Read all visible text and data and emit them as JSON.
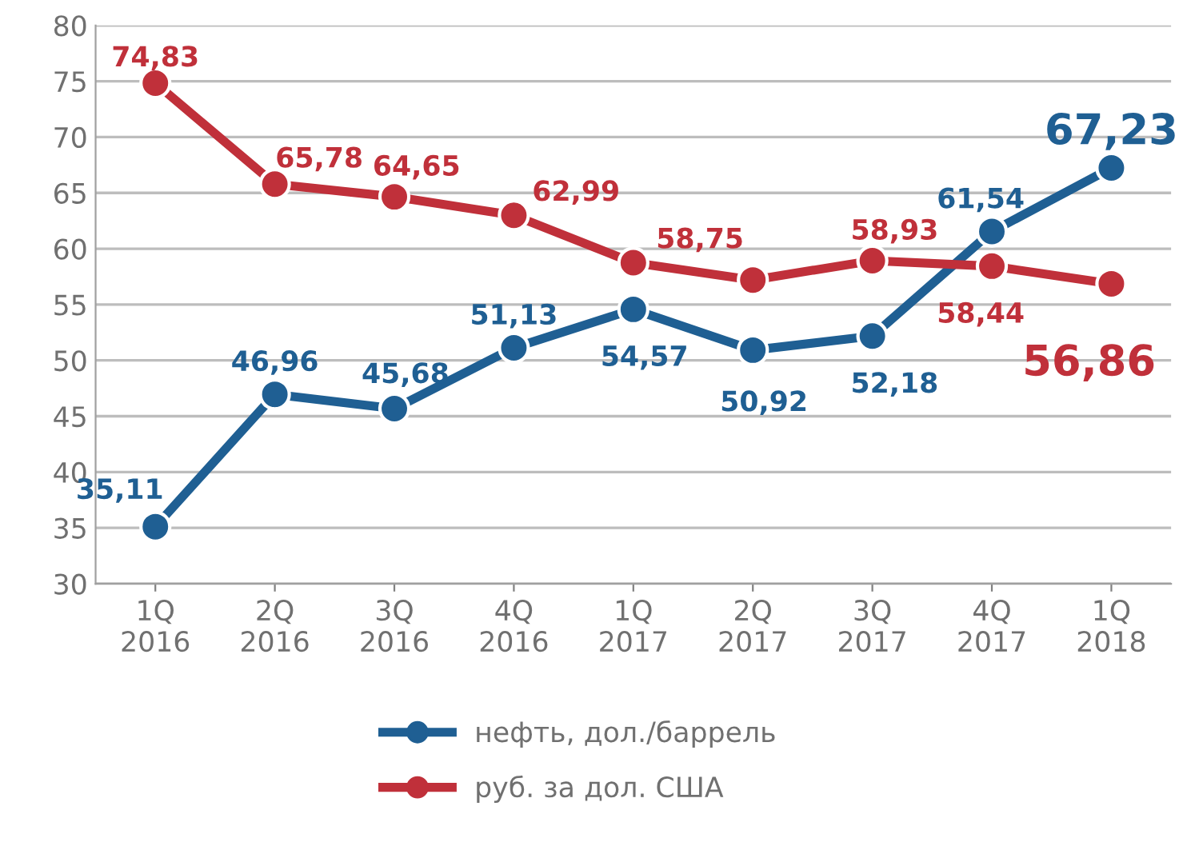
{
  "chart_data": {
    "type": "line",
    "categories": [
      "1Q\n2016",
      "2Q\n2016",
      "3Q\n2016",
      "4Q\n2016",
      "1Q\n2017",
      "2Q\n2017",
      "3Q\n2017",
      "4Q\n2017",
      "1Q\n2018"
    ],
    "series": [
      {
        "name": "нефть, дол./баррель",
        "color": "#1f5f93",
        "values": [
          35.11,
          46.96,
          45.68,
          51.13,
          54.57,
          50.92,
          52.18,
          61.54,
          67.23
        ],
        "value_labels": [
          "35,11",
          "46,96",
          "45,68",
          "51,13",
          "54,57",
          "50,92",
          "52,18",
          "61,54",
          "67,23"
        ]
      },
      {
        "name": "руб. за дол. США",
        "color": "#c0303a",
        "values": [
          74.83,
          65.78,
          64.65,
          62.99,
          58.75,
          57.2,
          58.93,
          58.44,
          56.86
        ],
        "value_labels": [
          "74,83",
          "65,78",
          "64,65",
          "62,99",
          "58,75",
          null,
          "58,93",
          "58,44",
          "56,86"
        ]
      }
    ],
    "ylim": [
      30,
      80
    ],
    "yticks": [
      30,
      35,
      40,
      45,
      50,
      55,
      60,
      65,
      70,
      75,
      80
    ],
    "grid": "y",
    "legend": "bottom",
    "marker": "circle",
    "line_style": "solid"
  }
}
